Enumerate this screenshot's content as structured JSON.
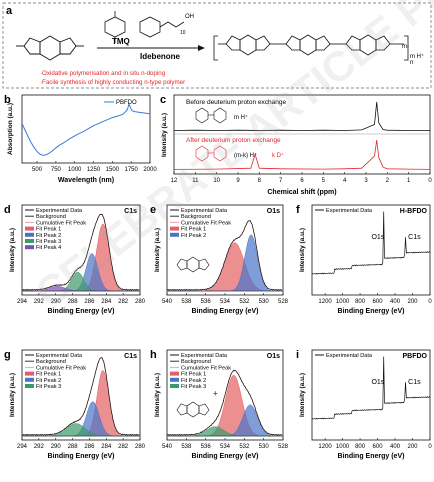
{
  "panel_a": {
    "letter": "a",
    "arrow_top": "TMQ",
    "arrow_bottom": "Idebenone",
    "reagent_subscript": "10",
    "reagent_oh": "OH",
    "product_m": "m-",
    "product_mh": "m H⁺",
    "product_n": "n",
    "note1": "·Oxidative polymerisation and in situ n-doping",
    "note2": "·Facile synthesis of highly conducting n-type polymer",
    "note_color": "#e0262c"
  },
  "chart_data": [
    {
      "panel": "b",
      "type": "line",
      "xlabel": "Wavelength (nm)",
      "ylabel": "Absorption (a.u.)",
      "xticks": [
        "500",
        "750",
        "1000",
        "1250",
        "1500",
        "1750",
        "2000"
      ],
      "xlim": [
        300,
        2000
      ],
      "legend": "PBFDO",
      "legend_placement": "top-right",
      "color": "#3b7bd6",
      "series": [
        {
          "name": "PBFDO",
          "x": [
            300,
            340,
            380,
            420,
            460,
            500,
            540,
            580,
            620,
            660,
            700,
            750,
            800,
            850,
            900,
            950,
            1000,
            1050,
            1100,
            1150,
            1200,
            1250,
            1300,
            1350,
            1400,
            1450,
            1500,
            1550,
            1600,
            1650,
            1700,
            1720,
            1740,
            1760,
            1800,
            1850,
            1900,
            1950,
            2000
          ],
          "y": [
            0.62,
            0.5,
            0.38,
            0.27,
            0.18,
            0.1,
            0.05,
            0.03,
            0.04,
            0.07,
            0.11,
            0.17,
            0.22,
            0.26,
            0.31,
            0.35,
            0.39,
            0.43,
            0.46,
            0.5,
            0.54,
            0.58,
            0.61,
            0.64,
            0.67,
            0.7,
            0.73,
            0.75,
            0.77,
            0.8,
            0.88,
            0.98,
            0.92,
            0.86,
            0.84,
            0.83,
            0.82,
            0.81,
            0.8
          ]
        }
      ]
    },
    {
      "panel": "c",
      "type": "line",
      "xlabel": "Chemical shift (ppm)",
      "ylabel": "Intensity (a.u.)",
      "xticks": [
        "12",
        "11",
        "10",
        "9",
        "8",
        "7",
        "6",
        "5",
        "4",
        "3",
        "2",
        "1",
        "0"
      ],
      "xlim": [
        12,
        0
      ],
      "top_label": "Before deuterium proton exchange",
      "bottom_label": "After deuterium proton exchange",
      "top_mh": "m H⁺",
      "bottom_mh": "(m-k) H⁺",
      "bottom_kd": "k D⁺",
      "series": [
        {
          "x": [
            12,
            11,
            10,
            9,
            8,
            7,
            6,
            5,
            4,
            3.2,
            2.6,
            2.5,
            2.4,
            2.2,
            2,
            1,
            0
          ],
          "y": [
            0.05,
            0.06,
            0.05,
            0.06,
            0.05,
            0.06,
            0.05,
            0.06,
            0.05,
            0.07,
            0.25,
            1.0,
            0.3,
            0.08,
            0.06,
            0.05,
            0.05
          ],
          "color": "#111111"
        },
        {
          "x": [
            12,
            10,
            8.4,
            8.2,
            8.0,
            7,
            5,
            4,
            3.2,
            2.6,
            2.5,
            2.4,
            2.2,
            2,
            1,
            0
          ],
          "y": [
            0.08,
            0.09,
            0.12,
            0.55,
            0.12,
            0.1,
            0.09,
            0.1,
            0.12,
            0.5,
            1.0,
            0.45,
            0.15,
            0.1,
            0.09,
            0.08
          ],
          "color": "#e0262c"
        }
      ]
    },
    {
      "panel": "d",
      "type": "line",
      "corner_label": "C1s",
      "xlabel": "Binding Energy (eV)",
      "ylabel": "Intensity (a.u.)",
      "xticks": [
        "294",
        "292",
        "290",
        "288",
        "286",
        "284",
        "282",
        "280"
      ],
      "xlim": [
        294,
        280
      ],
      "legend": [
        "Experimental Data",
        "Background",
        "Cumulative Fit Peak",
        "Fit Peak 1",
        "Fit Peak 2",
        "Fit Peak 3",
        "Fit Peak 4"
      ],
      "peaks": [
        {
          "name": "Fit Peak 1",
          "center": 284.4,
          "height": 0.86,
          "width": 0.75,
          "color": "#e36062"
        },
        {
          "name": "Fit Peak 2",
          "center": 285.7,
          "height": 0.48,
          "width": 0.7,
          "color": "#4874c9"
        },
        {
          "name": "Fit Peak 3",
          "center": 287.4,
          "height": 0.24,
          "width": 0.75,
          "color": "#3a9a6a"
        },
        {
          "name": "Fit Peak 4",
          "center": 289.8,
          "height": 0.06,
          "width": 0.9,
          "color": "#7b4fb2"
        }
      ]
    },
    {
      "panel": "e",
      "type": "line",
      "corner_label": "O1s",
      "xlabel": "Binding Energy (eV)",
      "ylabel": "Intensity (a.u.)",
      "xticks": [
        "540",
        "538",
        "536",
        "534",
        "532",
        "530",
        "528"
      ],
      "xlim": [
        540,
        528
      ],
      "legend": [
        "Experimental Data",
        "Background",
        "Cumulative Fit Peak",
        "Fit Peak 1",
        "Fit Peak 2"
      ],
      "peaks": [
        {
          "name": "Fit Peak 1",
          "center": 533.0,
          "height": 0.62,
          "width": 1.0,
          "color": "#e36062"
        },
        {
          "name": "Fit Peak 2",
          "center": 531.3,
          "height": 0.72,
          "width": 0.65,
          "color": "#4874c9"
        }
      ]
    },
    {
      "panel": "f",
      "type": "line",
      "corner_label": "H-BFDO",
      "xlabel": "Binding Energy (eV)",
      "ylabel": "Intensity (a.u.)",
      "xticks": [
        "1200",
        "1000",
        "800",
        "600",
        "400",
        "200",
        "0"
      ],
      "xlim": [
        1350,
        0
      ],
      "legend": [
        "Experimental Data"
      ],
      "peak_labels": [
        "O1s",
        "C1s"
      ]
    },
    {
      "panel": "g",
      "type": "line",
      "corner_label": "C1s",
      "xlabel": "Binding Energy (eV)",
      "ylabel": "Intensity (a.u.)",
      "xticks": [
        "294",
        "292",
        "290",
        "288",
        "286",
        "284",
        "282",
        "280"
      ],
      "xlim": [
        294,
        280
      ],
      "legend": [
        "Experimental Data",
        "Background",
        "Cumulative Fit Peak",
        "Fit Peak 1",
        "Fit Peak 2",
        "Fit Peak 3"
      ],
      "peaks": [
        {
          "name": "Fit Peak 1",
          "center": 284.4,
          "height": 0.84,
          "width": 0.7,
          "color": "#e36062"
        },
        {
          "name": "Fit Peak 2",
          "center": 285.6,
          "height": 0.44,
          "width": 0.75,
          "color": "#4874c9"
        },
        {
          "name": "Fit Peak 3",
          "center": 287.6,
          "height": 0.16,
          "width": 1.1,
          "color": "#3a9a6a"
        }
      ]
    },
    {
      "panel": "h",
      "type": "line",
      "corner_label": "O1s",
      "xlabel": "Binding Energy (eV)",
      "ylabel": "Intensity (a.u.)",
      "xticks": [
        "540",
        "538",
        "536",
        "534",
        "532",
        "530",
        "528"
      ],
      "xlim": [
        540,
        528
      ],
      "legend": [
        "Experimental Data",
        "Background",
        "Cumulative Fit Peak",
        "Fit Peak 1",
        "Fit Peak 2",
        "Fit Peak 3"
      ],
      "peaks": [
        {
          "name": "Fit Peak 1",
          "center": 533.1,
          "height": 0.78,
          "width": 0.85,
          "color": "#e36062"
        },
        {
          "name": "Fit Peak 2",
          "center": 531.4,
          "height": 0.4,
          "width": 0.75,
          "color": "#4874c9"
        },
        {
          "name": "Fit Peak 3",
          "center": 535.0,
          "height": 0.12,
          "width": 0.9,
          "color": "#3a9a6a"
        }
      ],
      "annotation_plus": "+"
    },
    {
      "panel": "i",
      "type": "line",
      "corner_label": "PBFDO",
      "xlabel": "Binding Energy (eV)",
      "ylabel": "Intensity (a.u.)",
      "xticks": [
        "1200",
        "1000",
        "800",
        "600",
        "400",
        "200",
        "0"
      ],
      "xlim": [
        1350,
        0
      ],
      "legend": [
        "Experimental Data"
      ],
      "peak_labels": [
        "O1s",
        "C1s"
      ]
    }
  ],
  "watermark": "CELEBRATE ARTICLE PREVIEW"
}
